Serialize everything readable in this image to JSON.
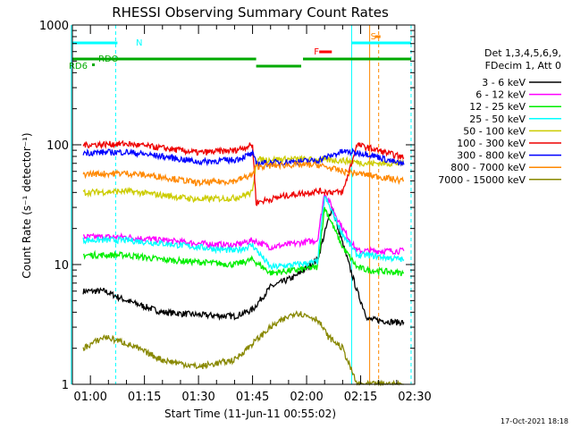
{
  "chart_data": {
    "type": "line",
    "title": "RHESSI Observing Summary Count Rates",
    "xlabel": "Start Time (11-Jun-11 00:55:02)",
    "ylabel": "Count Rate (s⁻¹ detector⁻¹)",
    "yscale": "log",
    "ylim": [
      1,
      1000
    ],
    "xlim_min": [
      0,
      95
    ],
    "x_tick_labels": [
      "01:00",
      "01:15",
      "01:30",
      "01:45",
      "02:00",
      "02:15",
      "02:30"
    ],
    "x_tick_min": [
      5,
      20,
      35,
      50,
      65,
      80,
      95
    ],
    "y_tick_labels": [
      "1",
      "10",
      "100",
      "1000"
    ],
    "y_tick_values": [
      1,
      10,
      100,
      1000
    ],
    "grid": false,
    "legend_position": "right",
    "legend_header": [
      "Det 1,3,4,5,6,9,",
      "FDecim 1, Att 0"
    ],
    "flag_labels": {
      "N": "N",
      "RD6": "RD6",
      "RDO": "RDO",
      "F": "F",
      "S": "S"
    },
    "footer_timestamp": "17-Oct-2021 18:18",
    "colors": {
      "cyan": "#00ffff",
      "green": "#00aa00",
      "red": "#ff0000",
      "orange": "#ff8800",
      "black": "#000000"
    },
    "series": [
      {
        "name": "3 - 6 keV",
        "color": "#000000",
        "points": [
          [
            3,
            6
          ],
          [
            9,
            6
          ],
          [
            15,
            5
          ],
          [
            25,
            4
          ],
          [
            35,
            3.8
          ],
          [
            45,
            3.7
          ],
          [
            50,
            4.2
          ],
          [
            55,
            6.5
          ],
          [
            62,
            8
          ],
          [
            68,
            11
          ],
          [
            72,
            30
          ],
          [
            75,
            15
          ],
          [
            79,
            6
          ],
          [
            82,
            3.5
          ],
          [
            90,
            3.3
          ],
          [
            92,
            3.3
          ]
        ]
      },
      {
        "name": "6 - 12 keV",
        "color": "#ff00ff",
        "points": [
          [
            3,
            17
          ],
          [
            15,
            17
          ],
          [
            25,
            16
          ],
          [
            35,
            15
          ],
          [
            45,
            14.5
          ],
          [
            50,
            16
          ],
          [
            55,
            14
          ],
          [
            62,
            15
          ],
          [
            68,
            16
          ],
          [
            70,
            40
          ],
          [
            75,
            20
          ],
          [
            79,
            13
          ],
          [
            82,
            13
          ],
          [
            92,
            13
          ]
        ]
      },
      {
        "name": "12 - 25 keV",
        "color": "#00ee00",
        "points": [
          [
            3,
            12
          ],
          [
            15,
            12
          ],
          [
            25,
            11
          ],
          [
            35,
            10.5
          ],
          [
            45,
            10
          ],
          [
            50,
            11
          ],
          [
            55,
            8.5
          ],
          [
            62,
            9
          ],
          [
            68,
            9.5
          ],
          [
            70,
            30
          ],
          [
            75,
            14
          ],
          [
            79,
            9.5
          ],
          [
            82,
            9
          ],
          [
            92,
            8.5
          ]
        ]
      },
      {
        "name": "25 - 50 keV",
        "color": "#00ffff",
        "points": [
          [
            3,
            16
          ],
          [
            15,
            16
          ],
          [
            25,
            15
          ],
          [
            35,
            14
          ],
          [
            45,
            13
          ],
          [
            50,
            14.5
          ],
          [
            55,
            9.5
          ],
          [
            62,
            10
          ],
          [
            68,
            10.5
          ],
          [
            70,
            37
          ],
          [
            75,
            18
          ],
          [
            79,
            12
          ],
          [
            82,
            12
          ],
          [
            92,
            11
          ]
        ]
      },
      {
        "name": "50 - 100 keV",
        "color": "#cccc00",
        "points": [
          [
            3,
            40
          ],
          [
            15,
            41
          ],
          [
            25,
            38
          ],
          [
            35,
            35
          ],
          [
            45,
            36
          ],
          [
            50,
            40
          ],
          [
            51,
            75
          ],
          [
            62,
            76
          ],
          [
            68,
            75
          ],
          [
            75,
            74
          ],
          [
            82,
            70
          ],
          [
            92,
            70
          ]
        ]
      },
      {
        "name": "100 - 300 keV",
        "color": "#ee0000",
        "points": [
          [
            3,
            100
          ],
          [
            15,
            102
          ],
          [
            25,
            94
          ],
          [
            35,
            86
          ],
          [
            45,
            90
          ],
          [
            50,
            100
          ],
          [
            51,
            33
          ],
          [
            60,
            38
          ],
          [
            68,
            41
          ],
          [
            75,
            40
          ],
          [
            79,
            100
          ],
          [
            82,
            95
          ],
          [
            92,
            78
          ]
        ]
      },
      {
        "name": "300 - 800 keV",
        "color": "#0000ff",
        "points": [
          [
            3,
            86
          ],
          [
            15,
            87
          ],
          [
            25,
            80
          ],
          [
            35,
            72
          ],
          [
            45,
            75
          ],
          [
            50,
            84
          ],
          [
            51,
            70
          ],
          [
            60,
            72
          ],
          [
            68,
            74
          ],
          [
            75,
            88
          ],
          [
            82,
            84
          ],
          [
            92,
            68
          ]
        ]
      },
      {
        "name": "800 - 7000 keV",
        "color": "#ff8800",
        "points": [
          [
            3,
            57
          ],
          [
            15,
            58
          ],
          [
            25,
            54
          ],
          [
            35,
            48
          ],
          [
            45,
            50
          ],
          [
            50,
            56
          ],
          [
            51,
            66
          ],
          [
            60,
            68
          ],
          [
            68,
            68
          ],
          [
            75,
            60
          ],
          [
            82,
            56
          ],
          [
            92,
            50
          ]
        ]
      },
      {
        "name": "7000 - 15000 keV",
        "color": "#888800",
        "points": [
          [
            3,
            2
          ],
          [
            9,
            2.5
          ],
          [
            15,
            2.2
          ],
          [
            25,
            1.6
          ],
          [
            35,
            1.4
          ],
          [
            45,
            1.6
          ],
          [
            50,
            2.2
          ],
          [
            55,
            3
          ],
          [
            62,
            4
          ],
          [
            68,
            3.5
          ],
          [
            71,
            2.5
          ],
          [
            75,
            2
          ],
          [
            79,
            1
          ],
          [
            82,
            1
          ],
          [
            92,
            1
          ]
        ]
      }
    ]
  }
}
